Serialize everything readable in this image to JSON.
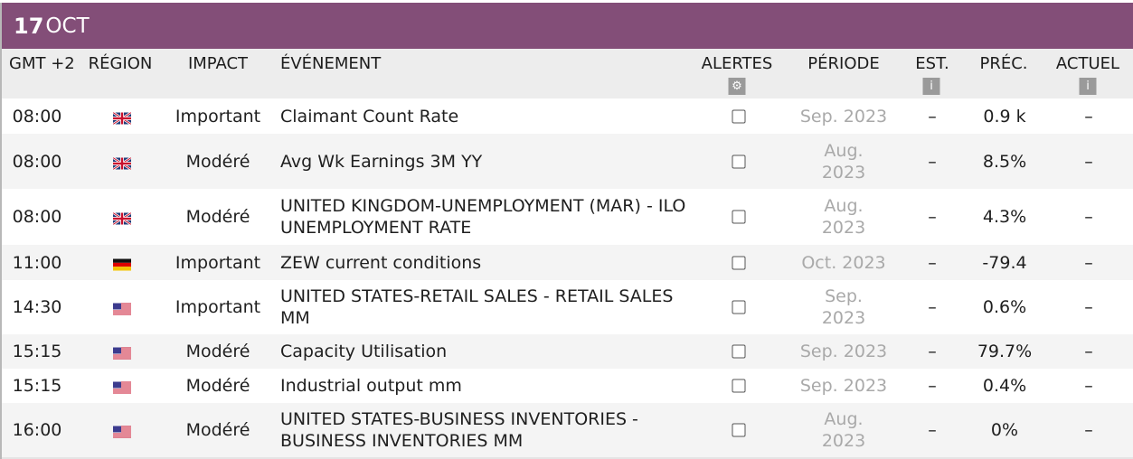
{
  "date": {
    "day": "17",
    "month": "OCT"
  },
  "columns": {
    "time": "GMT +2",
    "region": "RÉGION",
    "impact": "IMPACT",
    "event": "ÉVÉNEMENT",
    "alerts": "ALERTES",
    "period": "PÉRIODE",
    "est": "EST.",
    "prev": "PRÉC.",
    "actual": "ACTUEL"
  },
  "icons": {
    "alerts_settings": "gear-icon",
    "est_info": "info-icon",
    "actual_info": "info-icon"
  },
  "colors": {
    "date_bar": "#834e78",
    "muted_text": "#a9a9a9"
  },
  "rows": [
    {
      "time": "08:00",
      "region": "united-kingdom-flag",
      "impact": "Important",
      "event": "Claimant Count Rate",
      "period": "Sep. 2023",
      "est": "–",
      "prev": "0.9 k",
      "actual": "–"
    },
    {
      "time": "08:00",
      "region": "united-kingdom-flag",
      "impact": "Modéré",
      "event": "Avg Wk Earnings 3M YY",
      "period": "Aug. 2023",
      "est": "–",
      "prev": "8.5%",
      "actual": "–"
    },
    {
      "time": "08:00",
      "region": "united-kingdom-flag",
      "impact": "Modéré",
      "event": "UNITED KINGDOM-UNEMPLOYMENT (MAR) - ILO UNEMPLOYMENT RATE",
      "period": "Aug. 2023",
      "est": "–",
      "prev": "4.3%",
      "actual": "–"
    },
    {
      "time": "11:00",
      "region": "germany-flag",
      "impact": "Important",
      "event": "ZEW current conditions",
      "period": "Oct. 2023",
      "est": "–",
      "prev": "-79.4",
      "actual": "–"
    },
    {
      "time": "14:30",
      "region": "united-states-flag",
      "impact": "Important",
      "event": "UNITED STATES-RETAIL SALES - RETAIL SALES MM",
      "period": "Sep. 2023",
      "est": "–",
      "prev": "0.6%",
      "actual": "–"
    },
    {
      "time": "15:15",
      "region": "united-states-flag",
      "impact": "Modéré",
      "event": "Capacity Utilisation",
      "period": "Sep. 2023",
      "est": "–",
      "prev": "79.7%",
      "actual": "–"
    },
    {
      "time": "15:15",
      "region": "united-states-flag",
      "impact": "Modéré",
      "event": "Industrial output mm",
      "period": "Sep. 2023",
      "est": "–",
      "prev": "0.4%",
      "actual": "–"
    },
    {
      "time": "16:00",
      "region": "united-states-flag",
      "impact": "Modéré",
      "event": "UNITED STATES-BUSINESS INVENTORIES - BUSINESS INVENTORIES MM",
      "period": "Aug. 2023",
      "est": "–",
      "prev": "0%",
      "actual": "–"
    }
  ]
}
